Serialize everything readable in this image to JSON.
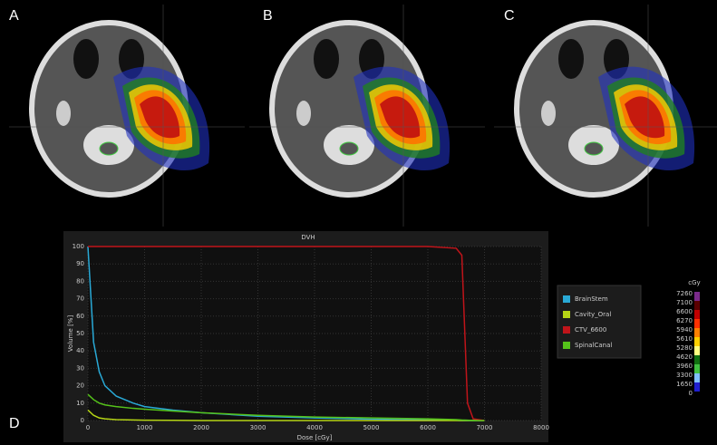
{
  "panels": {
    "labels": [
      "A",
      "B",
      "C",
      "D"
    ]
  },
  "chart_data": {
    "type": "line",
    "title": "DVH",
    "x_label": "Dose [cGy]",
    "y_label": "Volume [%]",
    "x": [
      0,
      100,
      200,
      300,
      500,
      800,
      1000,
      1500,
      2000,
      3000,
      4000,
      5000,
      6000,
      6500,
      6600,
      6700,
      6800,
      7000
    ],
    "series": [
      {
        "name": "BrainStem",
        "color": "#29a9d6",
        "values": [
          100,
          45,
          28,
          20,
          14,
          10,
          8,
          6,
          4.5,
          2.5,
          1.5,
          0.8,
          0.3,
          0.1,
          0,
          0,
          0,
          0
        ]
      },
      {
        "name": "Cavity_Oral",
        "color": "#b5d415",
        "values": [
          6,
          3,
          1.5,
          1,
          0.5,
          0.3,
          0.2,
          0.1,
          0,
          0,
          0,
          0,
          0,
          0,
          0,
          0,
          0,
          0
        ]
      },
      {
        "name": "CTV_6600",
        "color": "#c0141a",
        "values": [
          100,
          100,
          100,
          100,
          100,
          100,
          100,
          100,
          100,
          100,
          100,
          100,
          100,
          99,
          95,
          10,
          1,
          0
        ]
      },
      {
        "name": "SpinalCanal",
        "color": "#55c21a",
        "values": [
          15,
          12,
          10,
          9,
          8,
          7,
          6.5,
          5.5,
          4.5,
          3,
          2,
          1.5,
          1,
          0.5,
          0.3,
          0.2,
          0,
          0
        ]
      }
    ],
    "xlim": [
      0,
      8000
    ],
    "xticks": [
      0,
      1000,
      2000,
      3000,
      4000,
      5000,
      6000,
      7000,
      8000
    ],
    "ylim": [
      0,
      100
    ],
    "yticks": [
      0,
      10,
      20,
      30,
      40,
      50,
      60,
      70,
      80,
      90,
      100
    ],
    "grid": true,
    "legend": "right"
  },
  "colorbar": {
    "unit": "cGy",
    "levels": [
      {
        "value": 7260,
        "color": "#7a2a8a"
      },
      {
        "value": 7100,
        "color": "#5a0000"
      },
      {
        "value": 6600,
        "color": "#c00000"
      },
      {
        "value": 6270,
        "color": "#ff3000"
      },
      {
        "value": 5940,
        "color": "#ff8000"
      },
      {
        "value": 5610,
        "color": "#ffd000"
      },
      {
        "value": 5280,
        "color": "#ffff80"
      },
      {
        "value": 4620,
        "color": "#107010"
      },
      {
        "value": 3960,
        "color": "#40c040"
      },
      {
        "value": 3300,
        "color": "#80c0ff"
      },
      {
        "value": 1650,
        "color": "#2020d0"
      },
      {
        "value": 0,
        "color": "#000000"
      }
    ]
  }
}
